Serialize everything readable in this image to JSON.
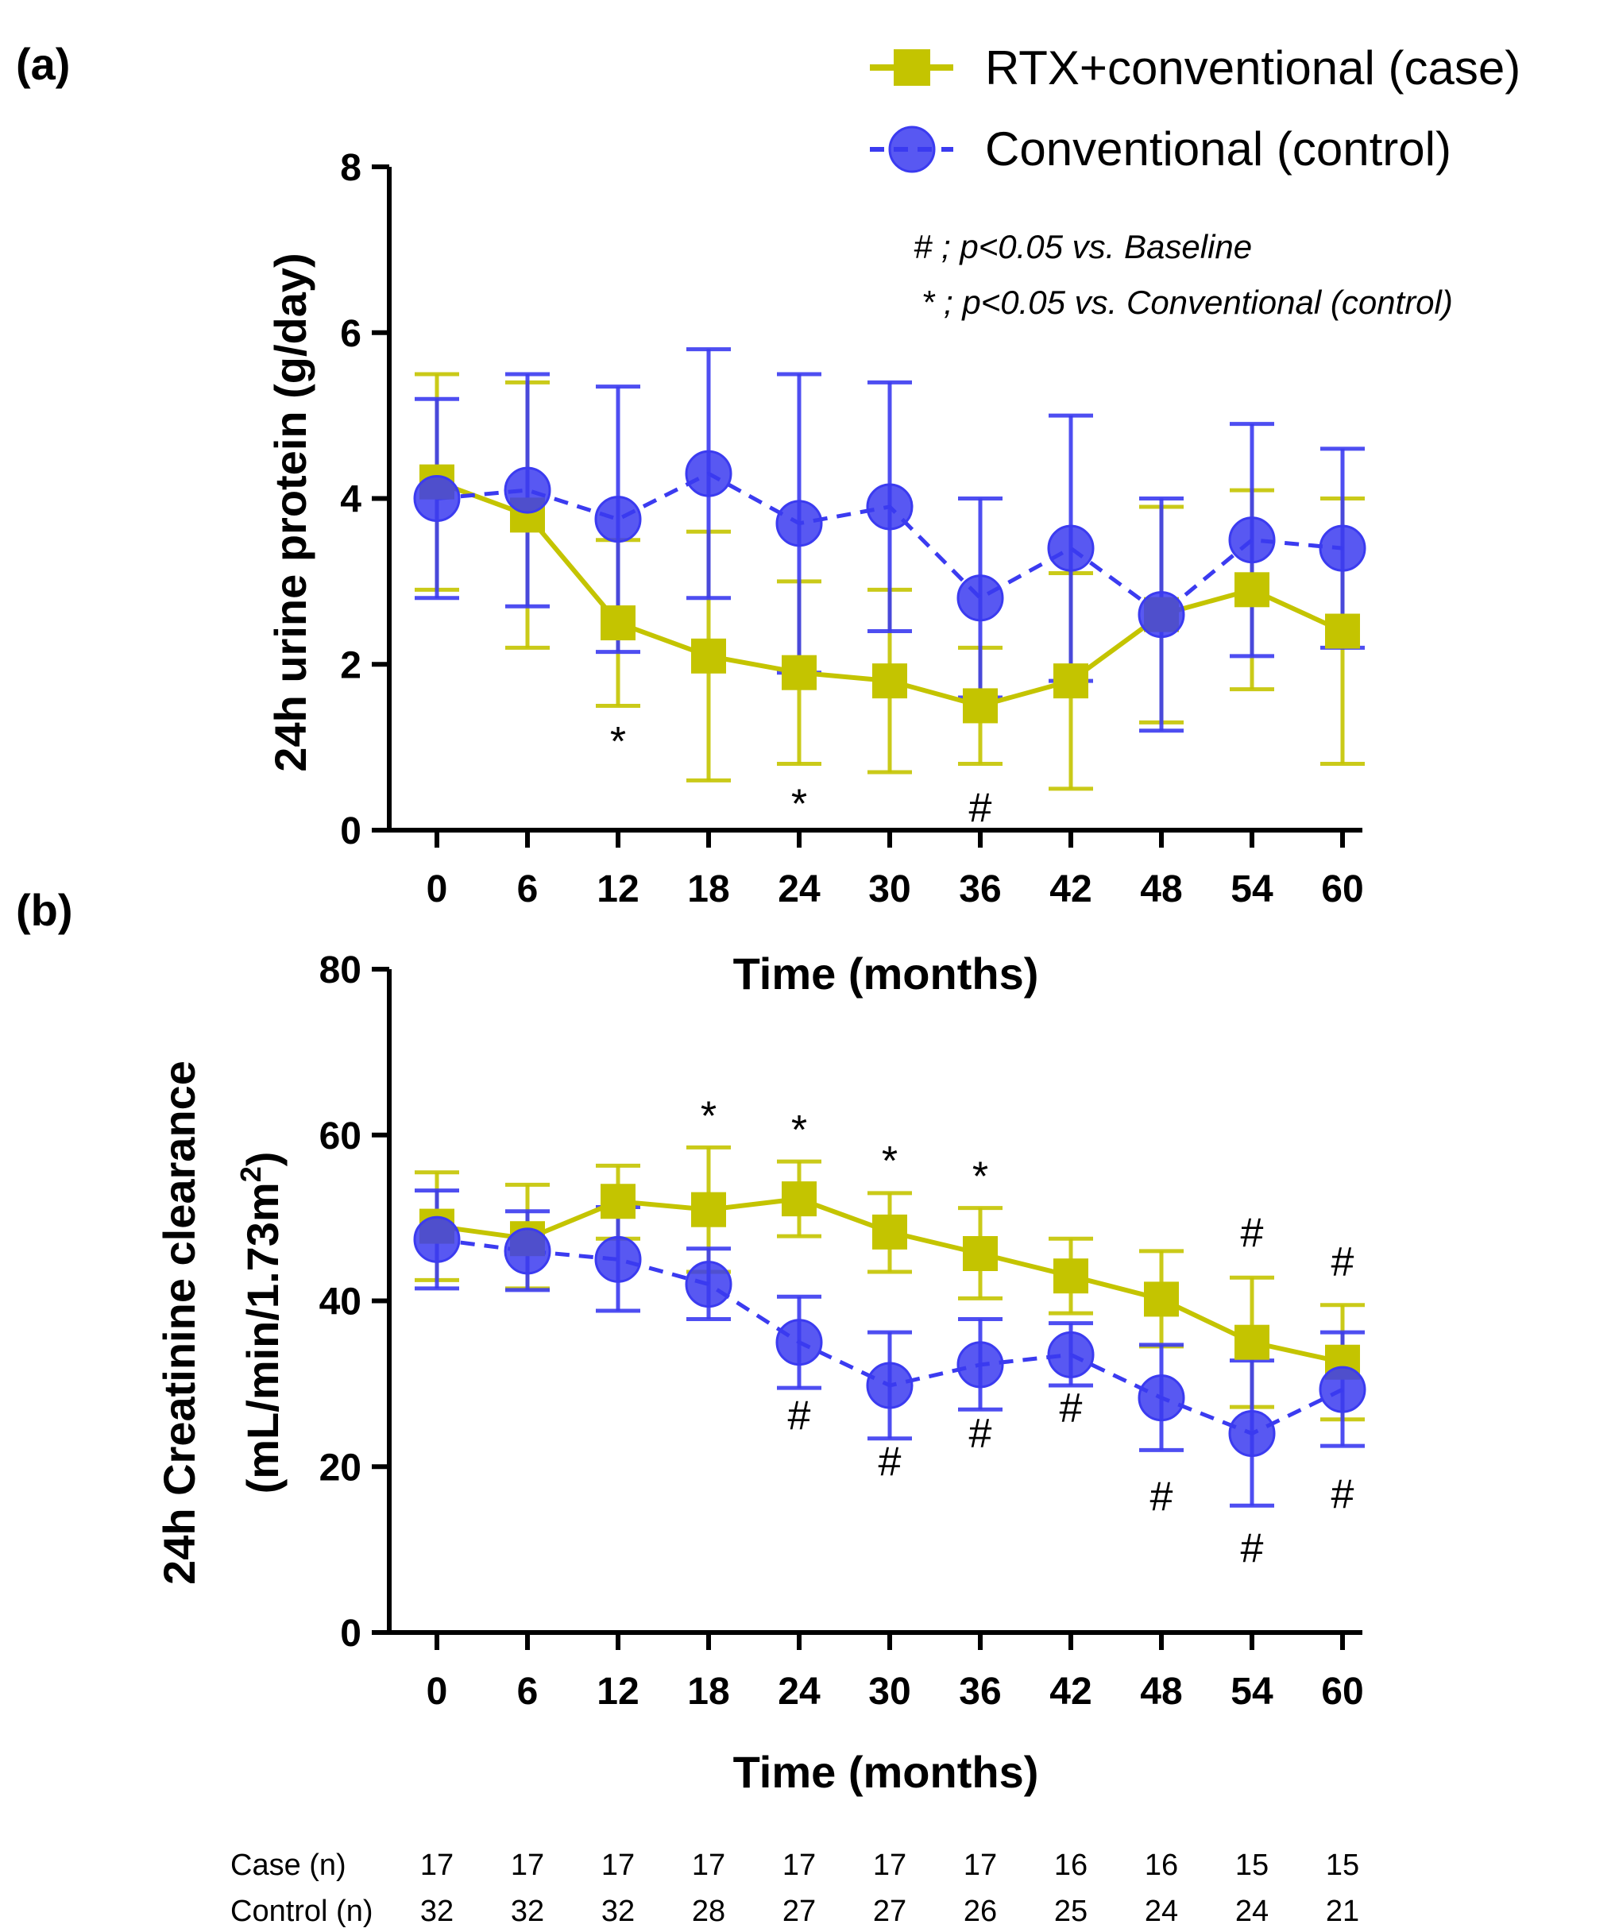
{
  "colors": {
    "case": "#c4c400",
    "control": "#3b3bf0",
    "axis": "#000000"
  },
  "legend": {
    "case_label": "RTX+conventional (case)",
    "control_label": "Conventional (control)"
  },
  "notes": {
    "baseline_note": "# ; p<0.05 vs. Baseline",
    "control_note": "* ; p<0.05 vs. Conventional (control)"
  },
  "n_table": {
    "case_label": "Case (n)",
    "control_label": "Control (n)",
    "case": [
      "17",
      "17",
      "17",
      "17",
      "17",
      "17",
      "17",
      "16",
      "16",
      "15",
      "15"
    ],
    "control": [
      "32",
      "32",
      "32",
      "28",
      "27",
      "27",
      "26",
      "25",
      "24",
      "24",
      "21"
    ]
  },
  "chart_data": [
    {
      "type": "line",
      "panel_label": "(a)",
      "title": "",
      "xlabel": "Time (months)",
      "ylabel": "24h urine protein (g/day)",
      "x": [
        0,
        6,
        12,
        18,
        24,
        30,
        36,
        42,
        48,
        54,
        60
      ],
      "xticks": [
        "0",
        "6",
        "12",
        "18",
        "24",
        "30",
        "36",
        "42",
        "48",
        "54",
        "60"
      ],
      "ylim": [
        0,
        8
      ],
      "yticks": [
        "0",
        "2",
        "4",
        "6",
        "8"
      ],
      "series": [
        {
          "name": "RTX+conventional (case)",
          "values": [
            4.2,
            3.8,
            2.5,
            2.1,
            1.9,
            1.8,
            1.5,
            1.8,
            2.6,
            2.9,
            2.4
          ],
          "err_low": [
            2.9,
            2.2,
            1.5,
            0.6,
            0.8,
            0.7,
            0.8,
            0.5,
            1.3,
            1.7,
            0.8
          ],
          "err_high": [
            5.5,
            5.4,
            3.5,
            3.6,
            3.0,
            2.9,
            2.2,
            3.1,
            3.9,
            4.1,
            4.0
          ]
        },
        {
          "name": "Conventional (control)",
          "values": [
            4.0,
            4.1,
            3.75,
            4.3,
            3.7,
            3.9,
            2.8,
            3.4,
            2.6,
            3.5,
            3.4
          ],
          "err_low": [
            2.8,
            2.7,
            2.15,
            2.8,
            1.9,
            2.4,
            1.6,
            1.8,
            1.2,
            2.1,
            2.2
          ],
          "err_high": [
            5.2,
            5.5,
            5.35,
            5.8,
            5.5,
            5.4,
            4.0,
            5.0,
            4.0,
            4.9,
            4.6
          ]
        }
      ],
      "annotations": [
        {
          "text": "*",
          "x": 12,
          "y": 0.9
        },
        {
          "text": "*",
          "x": 24,
          "y": 0.15
        },
        {
          "text": "#",
          "x": 36,
          "y": 0.1
        }
      ]
    },
    {
      "type": "line",
      "panel_label": "(b)",
      "title": "",
      "xlabel": "Time (months)",
      "ylabel": "24h Creatinine clearance",
      "ylabel2": "(mL/min/1.73m",
      "ylabel2_sup": "2",
      "ylabel2_end": ")",
      "x": [
        0,
        6,
        12,
        18,
        24,
        30,
        36,
        42,
        48,
        54,
        60
      ],
      "xticks": [
        "0",
        "6",
        "12",
        "18",
        "24",
        "30",
        "36",
        "42",
        "48",
        "54",
        "60"
      ],
      "ylim": [
        0,
        80
      ],
      "yticks": [
        "0",
        "20",
        "40",
        "60",
        "80"
      ],
      "series": [
        {
          "name": "RTX+conventional (case)",
          "values": [
            49.0,
            47.5,
            52.0,
            51.0,
            52.3,
            48.3,
            45.7,
            43.0,
            40.2,
            35.0,
            32.6
          ],
          "err_low": [
            42.5,
            41.5,
            47.5,
            43.5,
            47.8,
            43.5,
            40.3,
            38.5,
            34.5,
            27.2,
            25.7
          ],
          "err_high": [
            55.5,
            54.0,
            56.3,
            58.5,
            56.8,
            53.0,
            51.2,
            47.5,
            46.0,
            42.8,
            39.5
          ]
        },
        {
          "name": "Conventional (control)",
          "values": [
            47.4,
            46.0,
            45.0,
            42.0,
            35.0,
            29.8,
            32.3,
            33.5,
            28.3,
            24.0,
            29.3
          ],
          "err_low": [
            41.5,
            41.3,
            38.8,
            37.8,
            29.5,
            23.4,
            26.9,
            29.8,
            22.0,
            15.3,
            22.5
          ],
          "err_high": [
            53.3,
            50.8,
            51.3,
            46.3,
            40.5,
            36.2,
            37.8,
            37.3,
            34.7,
            32.8,
            36.2
          ]
        }
      ],
      "annotations": [
        {
          "text": "*",
          "x": 18,
          "y": 60.6
        },
        {
          "text": "*",
          "x": 24,
          "y": 58.9
        },
        {
          "text": "*",
          "x": 30,
          "y": 55.2
        },
        {
          "text": "*",
          "x": 36,
          "y": 53.3
        },
        {
          "text": "#",
          "x": 54,
          "y": 46.5
        },
        {
          "text": "#",
          "x": 60,
          "y": 43.0
        },
        {
          "text": "#",
          "x": 24,
          "y": 24.5
        },
        {
          "text": "#",
          "x": 30,
          "y": 18.9
        },
        {
          "text": "#",
          "x": 36,
          "y": 22.3
        },
        {
          "text": "#",
          "x": 42,
          "y": 25.4
        },
        {
          "text": "#",
          "x": 48,
          "y": 14.7
        },
        {
          "text": "#",
          "x": 54,
          "y": 8.5
        },
        {
          "text": "#",
          "x": 60,
          "y": 15.0
        }
      ]
    }
  ]
}
